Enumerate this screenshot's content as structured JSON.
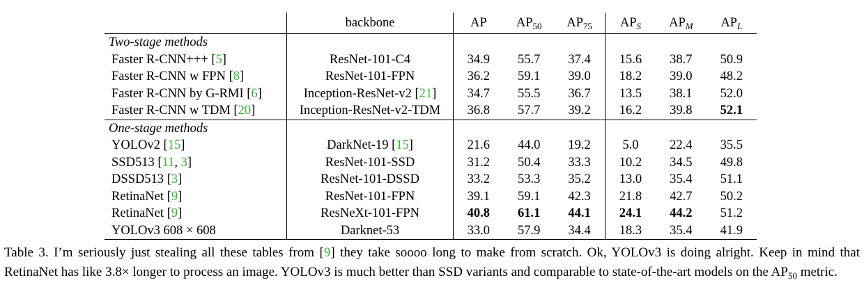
{
  "header": {
    "backbone": "backbone",
    "ap": "AP",
    "ap50_base": "AP",
    "ap50_sub": "50",
    "ap75_base": "AP",
    "ap75_sub": "75",
    "aps_base": "AP",
    "aps_sub": "S",
    "apm_base": "AP",
    "apm_sub": "M",
    "apl_base": "AP",
    "apl_sub": "L"
  },
  "sections": [
    {
      "title": "Two-stage methods",
      "rows": [
        {
          "name": "Faster R-CNN+++",
          "open": " [",
          "ref1": "5",
          "sep": "",
          "ref2": "",
          "close": "]",
          "backbone": "ResNet-101-C4",
          "bb_open": "",
          "bb_ref": "",
          "bb_close": "",
          "ap": "34.9",
          "ap50": "55.7",
          "ap75": "37.4",
          "aps": "15.6",
          "apm": "38.7",
          "apl": "50.9"
        },
        {
          "name": "Faster R-CNN w FPN",
          "open": " [",
          "ref1": "8",
          "sep": "",
          "ref2": "",
          "close": "]",
          "backbone": "ResNet-101-FPN",
          "bb_open": "",
          "bb_ref": "",
          "bb_close": "",
          "ap": "36.2",
          "ap50": "59.1",
          "ap75": "39.0",
          "aps": "18.2",
          "apm": "39.0",
          "apl": "48.2"
        },
        {
          "name": "Faster R-CNN by G-RMI",
          "open": " [",
          "ref1": "6",
          "sep": "",
          "ref2": "",
          "close": "]",
          "backbone": "Inception-ResNet-v2",
          "bb_open": " [",
          "bb_ref": "21",
          "bb_close": "]",
          "ap": "34.7",
          "ap50": "55.5",
          "ap75": "36.7",
          "aps": "13.5",
          "apm": "38.1",
          "apl": "52.0"
        },
        {
          "name": "Faster R-CNN w TDM",
          "open": " [",
          "ref1": "20",
          "sep": "",
          "ref2": "",
          "close": "]",
          "backbone": "Inception-ResNet-v2-TDM",
          "bb_open": "",
          "bb_ref": "",
          "bb_close": "",
          "ap": "36.8",
          "ap50": "57.7",
          "ap75": "39.2",
          "aps": "16.2",
          "apm": "39.8",
          "apl": "52.1"
        }
      ]
    },
    {
      "title": "One-stage methods",
      "rows": [
        {
          "name": "YOLOv2",
          "open": " [",
          "ref1": "15",
          "sep": "",
          "ref2": "",
          "close": "]",
          "backbone": "DarkNet-19",
          "bb_open": " [",
          "bb_ref": "15",
          "bb_close": "]",
          "ap": "21.6",
          "ap50": "44.0",
          "ap75": "19.2",
          "aps": "5.0",
          "apm": "22.4",
          "apl": "35.5"
        },
        {
          "name": "SSD513",
          "open": " [",
          "ref1": "11",
          "sep": ", ",
          "ref2": "3",
          "close": "]",
          "backbone": "ResNet-101-SSD",
          "bb_open": "",
          "bb_ref": "",
          "bb_close": "",
          "ap": "31.2",
          "ap50": "50.4",
          "ap75": "33.3",
          "aps": "10.2",
          "apm": "34.5",
          "apl": "49.8"
        },
        {
          "name": "DSSD513",
          "open": " [",
          "ref1": "3",
          "sep": "",
          "ref2": "",
          "close": "]",
          "backbone": "ResNet-101-DSSD",
          "bb_open": "",
          "bb_ref": "",
          "bb_close": "",
          "ap": "33.2",
          "ap50": "53.3",
          "ap75": "35.2",
          "aps": "13.0",
          "apm": "35.4",
          "apl": "51.1"
        },
        {
          "name": "RetinaNet",
          "open": " [",
          "ref1": "9",
          "sep": "",
          "ref2": "",
          "close": "]",
          "backbone": "ResNet-101-FPN",
          "bb_open": "",
          "bb_ref": "",
          "bb_close": "",
          "ap": "39.1",
          "ap50": "59.1",
          "ap75": "42.3",
          "aps": "21.8",
          "apm": "42.7",
          "apl": "50.2"
        },
        {
          "name": "RetinaNet",
          "open": " [",
          "ref1": "9",
          "sep": "",
          "ref2": "",
          "close": "]",
          "backbone": "ResNeXt-101-FPN",
          "bb_open": "",
          "bb_ref": "",
          "bb_close": "",
          "ap": "40.8",
          "ap50": "61.1",
          "ap75": "44.1",
          "aps": "24.1",
          "apm": "44.2",
          "apl": "51.2"
        },
        {
          "name": "YOLOv3 608 × 608",
          "open": "",
          "ref1": "",
          "sep": "",
          "ref2": "",
          "close": "",
          "backbone": "Darknet-53",
          "bb_open": "",
          "bb_ref": "",
          "bb_close": "",
          "ap": "33.0",
          "ap50": "57.9",
          "ap75": "34.4",
          "aps": "18.3",
          "apm": "35.4",
          "apl": "41.9"
        }
      ]
    }
  ],
  "caption": {
    "part1": "Table 3. I’m seriously just stealing all these tables from [",
    "ref": "9",
    "part2": "] they take soooo long to make from scratch. Ok, YOLOv3 is doing alright. Keep in mind that RetinaNet has like 3.8× longer to process an image. YOLOv3 is much better than SSD variants and comparable to state-of-the-art models on the AP",
    "sub": "50",
    "part3": " metric."
  },
  "colors": {
    "reference": "#36b336",
    "text": "#000000"
  }
}
